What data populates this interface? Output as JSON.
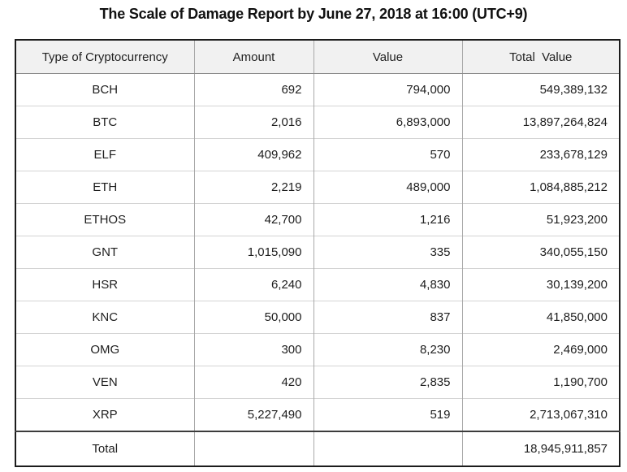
{
  "title": "The Scale of Damage Report by June 27, 2018 at 16:00 (UTC+9)",
  "table": {
    "columns": [
      "Type of Cryptocurrency",
      "Amount",
      "Value",
      "Total  Value"
    ],
    "rows": [
      {
        "type": "BCH",
        "amount": "692",
        "value": "794,000",
        "total": "549,389,132"
      },
      {
        "type": "BTC",
        "amount": "2,016",
        "value": "6,893,000",
        "total": "13,897,264,824"
      },
      {
        "type": "ELF",
        "amount": "409,962",
        "value": "570",
        "total": "233,678,129"
      },
      {
        "type": "ETH",
        "amount": "2,219",
        "value": "489,000",
        "total": "1,084,885,212"
      },
      {
        "type": "ETHOS",
        "amount": "42,700",
        "value": "1,216",
        "total": "51,923,200"
      },
      {
        "type": "GNT",
        "amount": "1,015,090",
        "value": "335",
        "total": "340,055,150"
      },
      {
        "type": "HSR",
        "amount": "6,240",
        "value": "4,830",
        "total": "30,139,200"
      },
      {
        "type": "KNC",
        "amount": "50,000",
        "value": "837",
        "total": "41,850,000"
      },
      {
        "type": "OMG",
        "amount": "300",
        "value": "8,230",
        "total": "2,469,000"
      },
      {
        "type": "VEN",
        "amount": "420",
        "value": "2,835",
        "total": "1,190,700"
      },
      {
        "type": "XRP",
        "amount": "5,227,490",
        "value": "519",
        "total": "2,713,067,310"
      }
    ],
    "total_row": {
      "label": "Total",
      "amount": "",
      "value": "",
      "total": "18,945,911,857"
    }
  },
  "chart_data": {
    "type": "table",
    "title": "The Scale of Damage Report by June 27, 2018 at 16:00 (UTC+9)",
    "columns": [
      "Type of Cryptocurrency",
      "Amount",
      "Value",
      "Total Value"
    ],
    "rows": [
      [
        "BCH",
        692,
        794000,
        549389132
      ],
      [
        "BTC",
        2016,
        6893000,
        13897264824
      ],
      [
        "ELF",
        409962,
        570,
        233678129
      ],
      [
        "ETH",
        2219,
        489000,
        1084885212
      ],
      [
        "ETHOS",
        42700,
        1216,
        51923200
      ],
      [
        "GNT",
        1015090,
        335,
        340055150
      ],
      [
        "HSR",
        6240,
        4830,
        30139200
      ],
      [
        "KNC",
        50000,
        837,
        41850000
      ],
      [
        "OMG",
        300,
        8230,
        2469000
      ],
      [
        "VEN",
        420,
        2835,
        1190700
      ],
      [
        "XRP",
        5227490,
        519,
        2713067310
      ]
    ],
    "total_row": [
      "Total",
      null,
      null,
      18945911857
    ]
  },
  "colors": {
    "header_bg": "#f1f1f1",
    "outer_border": "#1c1c1c",
    "vertical_divider": "#a8a8a8",
    "row_divider": "#d4d4d4",
    "header_bottom_border": "#8a8a8a",
    "total_top_border": "#3c3c3c",
    "text": "#1e1e1e"
  }
}
